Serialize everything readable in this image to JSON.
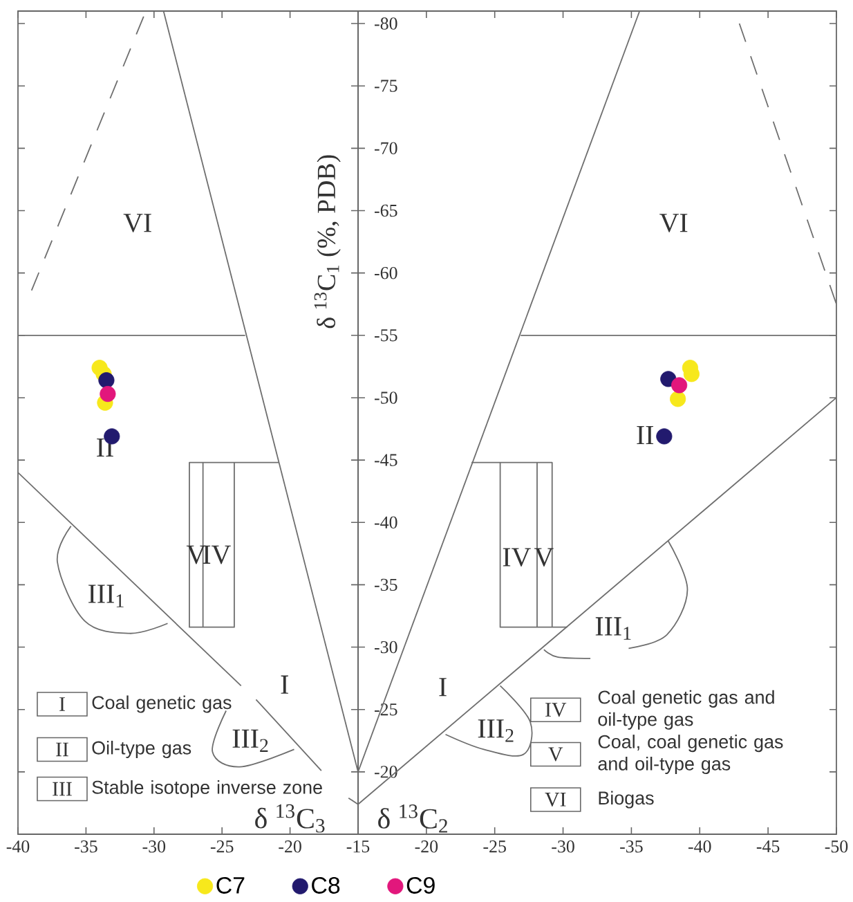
{
  "chart_data": [
    {
      "type": "scatter",
      "xlabel": "δ $^{13}$C$_{3}$",
      "ylabel": "δ $^{13}$C$_{1}$ (%, PDB)",
      "xlim": [
        -40,
        -15
      ],
      "xticks": [
        -40,
        -35,
        -30,
        -25,
        -20,
        -15
      ],
      "ylim": [
        -15,
        -81
      ],
      "yticks": [
        -80,
        -75,
        -70,
        -65,
        -60,
        -55,
        -50,
        -45,
        -40,
        -35,
        -30,
        -25,
        -20
      ],
      "tick_labels": "x",
      "legend": false,
      "series": [
        {
          "type": "line",
          "line_style": "dashed",
          "color": "#6e6e6e",
          "x": [
            -39.0,
            -30.6
          ],
          "values": [
            -58.6,
            -81
          ]
        },
        {
          "type": "line",
          "color": "#6e6e6e",
          "x": [
            -40,
            -23.3
          ],
          "values": [
            -55,
            -55
          ]
        },
        {
          "type": "line",
          "color": "#6e6e6e",
          "x": [
            -29.3,
            -15
          ],
          "values": [
            -81,
            -20
          ]
        },
        {
          "type": "line",
          "color": "#6e6e6e",
          "x": [
            -40,
            -23.6
          ],
          "values": [
            -44,
            -26.9
          ]
        },
        {
          "type": "line",
          "color": "#6e6e6e",
          "x": [
            -22.5,
            -17.7
          ],
          "values": [
            -25.8,
            -20.1
          ]
        },
        {
          "type": "line",
          "color": "#6e6e6e",
          "x": [
            -20.8,
            -27.4,
            -27.4,
            -24.1,
            -24.1
          ],
          "values": [
            -44.8,
            -44.8,
            -31.6,
            -31.6,
            -44.8
          ]
        },
        {
          "type": "line",
          "color": "#6e6e6e",
          "x": [
            -26.4,
            -26.4
          ],
          "values": [
            -44.8,
            -31.6
          ]
        },
        {
          "type": "line",
          "color": "#6e6e6e",
          "x": [
            -36.1,
            -37.1,
            -35.1,
            -31.8,
            -29.0
          ],
          "values": [
            -39.7,
            -36.8,
            -32.1,
            -31.1,
            -31.9
          ]
        },
        {
          "type": "line",
          "color": "#6e6e6e",
          "x": [
            -24.7,
            -25.7,
            -23.7,
            -19.7
          ],
          "values": [
            -24.9,
            -21.6,
            -20.4,
            -21.8
          ]
        },
        {
          "type": "line",
          "color": "#6e6e6e",
          "x": [
            -15.7,
            -15
          ],
          "values": [
            -17.9,
            -17.4
          ]
        },
        {
          "color": "#f7e81c",
          "x": [
            -34.0,
            -33.7,
            -33.6
          ],
          "values": [
            -52.4,
            -51.9,
            -49.6
          ]
        },
        {
          "color": "#221a6e",
          "x": [
            -33.5,
            -33.1
          ],
          "values": [
            -51.4,
            -46.9
          ]
        },
        {
          "color": "#e2177c",
          "x": [
            -33.4
          ],
          "values": [
            -50.3
          ]
        }
      ],
      "annotations": [
        "VI",
        "II",
        "V",
        "IV",
        "III$_{1}$",
        "I",
        "III$_{2}$",
        "I",
        "Coal genetic gas",
        "II",
        "Oil-type gas",
        "III",
        "Stable isotope inverse zone"
      ]
    },
    {
      "type": "scatter",
      "xlabel": "δ $^{13}$C$_{2}$",
      "xlim": [
        -15,
        -50
      ],
      "xticks": [
        -20,
        -25,
        -30,
        -35,
        -40,
        -45,
        -50
      ],
      "ylim": [
        -15,
        -81
      ],
      "yticks": [
        -80,
        -75,
        -70,
        -65,
        -60,
        -55,
        -50,
        -45,
        -40,
        -35,
        -30,
        -25,
        -20
      ],
      "legend": "bottom",
      "series": [
        {
          "type": "line",
          "line_style": "dashed",
          "color": "#6e6e6e",
          "x": [
            -42.9,
            -50
          ],
          "values": [
            -80,
            -57.5
          ]
        },
        {
          "type": "line",
          "color": "#6e6e6e",
          "x": [
            -26.9,
            -50
          ],
          "values": [
            -55,
            -55
          ]
        },
        {
          "type": "line",
          "color": "#6e6e6e",
          "x": [
            -35.6,
            -15
          ],
          "values": [
            -81,
            -20
          ]
        },
        {
          "type": "line",
          "color": "#6e6e6e",
          "x": [
            -15,
            -50
          ],
          "values": [
            -17.4,
            -50.0
          ]
        },
        {
          "type": "line",
          "color": "#6e6e6e",
          "x": [
            -23.3,
            -29.2,
            -29.2
          ],
          "values": [
            -44.8,
            -44.8,
            -31.6
          ]
        },
        {
          "type": "line",
          "color": "#6e6e6e",
          "x": [
            -25.4,
            -25.4,
            -30.3
          ],
          "values": [
            -44.8,
            -31.6,
            -31.6
          ]
        },
        {
          "type": "line",
          "color": "#6e6e6e",
          "x": [
            -28.1,
            -28.1
          ],
          "values": [
            -44.8,
            -31.6
          ]
        },
        {
          "type": "line",
          "color": "#6e6e6e",
          "x": [
            -37.7,
            -39.1,
            -37.6,
            -34.8
          ],
          "values": [
            -38.5,
            -34.6,
            -31.0,
            -29.9
          ]
        },
        {
          "type": "line",
          "color": "#6e6e6e",
          "x": [
            -28.6,
            -29.6,
            -32.0
          ],
          "values": [
            -29.8,
            -29.2,
            -29.1
          ]
        },
        {
          "type": "line",
          "color": "#6e6e6e",
          "x": [
            -25.4,
            -27.6,
            -27.1,
            -24.2,
            -21.4
          ],
          "values": [
            -26.9,
            -24.0,
            -21.4,
            -21.8,
            -23.0
          ]
        },
        {
          "name": "C7",
          "color": "#f7e81c",
          "x": [
            -39.3,
            -39.4,
            -38.4
          ],
          "values": [
            -52.4,
            -51.9,
            -49.9
          ]
        },
        {
          "name": "C8",
          "color": "#221a6e",
          "x": [
            -37.7,
            -37.4
          ],
          "values": [
            -51.5,
            -46.9
          ]
        },
        {
          "name": "C9",
          "color": "#e2177c",
          "x": [
            -38.5
          ],
          "values": [
            -51.0
          ]
        }
      ],
      "annotations": [
        "VI",
        "II",
        "IV",
        "V",
        "III$_{1}$",
        "I",
        "III$_{2}$",
        "IV",
        "Coal genetic gas and oil-type gas",
        "V",
        "Coal, coal genetic gas and oil-type gas",
        "VI",
        "Biogas"
      ]
    }
  ]
}
